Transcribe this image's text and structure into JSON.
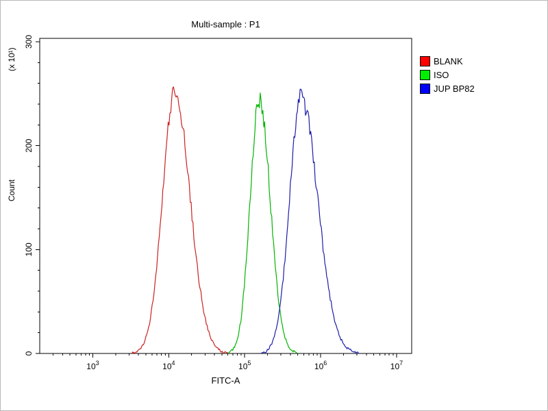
{
  "figure": {
    "title": "Multi-sample : P1",
    "x_axis_label": "FITC-A",
    "y_axis_label": "Count",
    "y_axis_unit": "(x 10¹)"
  },
  "legend": {
    "items": [
      {
        "label": "BLANK",
        "color": "#ff0000"
      },
      {
        "label": "ISO",
        "color": "#00ee00"
      },
      {
        "label": "JUP BP82",
        "color": "#0000ff"
      }
    ]
  },
  "chart_data": {
    "type": "line",
    "subtype": "flow-cytometry-histogram",
    "title": "Multi-sample : P1",
    "xlabel": "FITC-A",
    "ylabel": "Count",
    "y_unit": "(x 10^1)",
    "x_scale": "log10",
    "xlim": [
      200,
      15800000
    ],
    "ylim": [
      0,
      305
    ],
    "yticks": [
      0,
      100,
      200,
      300
    ],
    "ytick_minor_step": 20,
    "xtick_exponents": [
      3,
      4,
      5,
      6,
      7
    ],
    "grid": false,
    "legend_position": "right-outside",
    "series": [
      {
        "name": "BLANK",
        "color": "#cc2020",
        "peak_x": 12000,
        "peak_y": 252,
        "sigma_log_left": 0.16,
        "sigma_log_right": 0.2,
        "visible_x_range": [
          4500,
          70000
        ]
      },
      {
        "name": "ISO",
        "color": "#00b400",
        "peak_x": 155000,
        "peak_y": 245,
        "sigma_log_left": 0.12,
        "sigma_log_right": 0.145,
        "visible_x_range": [
          50000,
          420000
        ]
      },
      {
        "name": "JUP BP82",
        "color": "#1c1caa",
        "peak_x": 550000,
        "peak_y": 246,
        "sigma_log_left": 0.15,
        "sigma_log_right": 0.22,
        "visible_x_range": [
          150000,
          3200000
        ]
      }
    ]
  }
}
